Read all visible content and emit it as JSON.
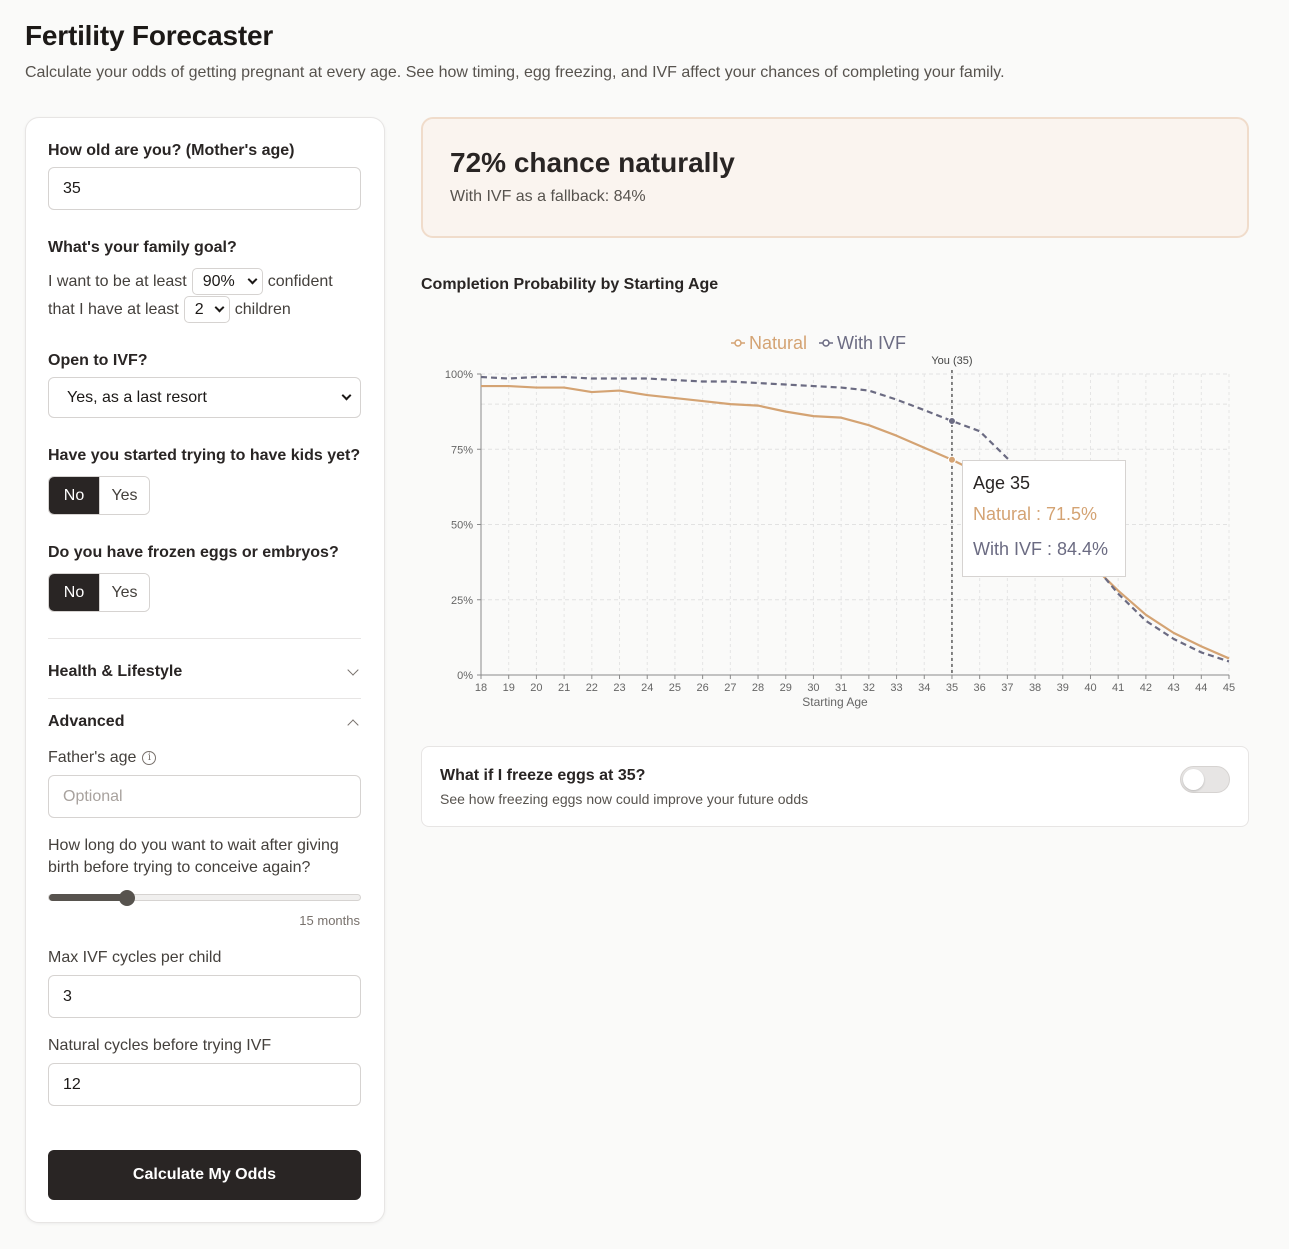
{
  "header": {
    "title": "Fertility Forecaster",
    "subtitle": "Calculate your odds of getting pregnant at every age. See how timing, egg freezing, and IVF affect your chances of completing your family."
  },
  "form": {
    "age": {
      "label": "How old are you? (Mother's age)",
      "value": "35"
    },
    "goal": {
      "label": "What's your family goal?",
      "line1_prefix": "I want to be at least",
      "confidence": "90%",
      "line1_suffix": "confident",
      "line2_prefix": "that I have at least",
      "children": "2",
      "line2_suffix": "children"
    },
    "ivf": {
      "label": "Open to IVF?",
      "value": "Yes, as a last resort"
    },
    "started": {
      "label": "Have you started trying to have kids yet?",
      "options": [
        "No",
        "Yes"
      ],
      "selected": "No"
    },
    "frozen": {
      "label": "Do you have frozen eggs or embryos?",
      "options": [
        "No",
        "Yes"
      ],
      "selected": "No"
    },
    "health_section": {
      "label": "Health & Lifestyle",
      "expanded": false
    },
    "advanced_section": {
      "label": "Advanced",
      "expanded": true
    },
    "father_age": {
      "label": "Father's age",
      "placeholder": "Optional",
      "info_icon": "info-icon"
    },
    "wait": {
      "label_line1": "How long do you want to wait after giving",
      "label_line2": "birth before trying to conceive again?",
      "value_label": "15 months",
      "value": 15,
      "min": 0,
      "max": 60
    },
    "max_ivf": {
      "label": "Max IVF cycles per child",
      "value": "3"
    },
    "natural_cycles": {
      "label": "Natural cycles before trying IVF",
      "value": "12"
    },
    "submit_label": "Calculate My Odds"
  },
  "result": {
    "headline": "72% chance naturally",
    "subline": "With IVF as a fallback: 84%"
  },
  "chart_title": "Completion Probability by Starting Age",
  "chart_data": {
    "type": "line",
    "title": "Completion Probability by Starting Age",
    "xlabel": "Starting Age",
    "ylabel": "",
    "xlim": [
      18,
      45
    ],
    "ylim": [
      0,
      100
    ],
    "yticks": [
      "0%",
      "25%",
      "50%",
      "75%",
      "100%"
    ],
    "legend": "top",
    "grid": true,
    "marker_label": "You (35)",
    "marker_x": 35,
    "x": [
      18,
      19,
      20,
      21,
      22,
      23,
      24,
      25,
      26,
      27,
      28,
      29,
      30,
      31,
      32,
      33,
      34,
      35,
      36,
      37,
      38,
      39,
      40,
      41,
      42,
      43,
      44,
      45
    ],
    "series": [
      {
        "name": "Natural",
        "color": "#d4a373",
        "dash": false,
        "values": [
          96,
          96,
          95.5,
          95.5,
          94,
          94.5,
          93,
          92,
          91,
          90,
          89.5,
          87.5,
          86,
          85.5,
          83,
          79.5,
          75.5,
          71.5,
          67,
          62,
          56,
          48,
          37,
          28,
          20,
          14,
          9.5,
          5.5
        ]
      },
      {
        "name": "With IVF",
        "color": "#6b6b82",
        "dash": true,
        "values": [
          99,
          98.5,
          99,
          99,
          98.5,
          98.5,
          98.5,
          98,
          97.5,
          97.5,
          97,
          96.5,
          96,
          95.5,
          94.5,
          91.5,
          88,
          84.4,
          81,
          72,
          62,
          50,
          38,
          27,
          18,
          12,
          7.5,
          4.5
        ]
      }
    ]
  },
  "tooltip": {
    "title": "Age 35",
    "natural": "Natural : 71.5%",
    "ivf": "With IVF : 84.4%"
  },
  "freeze": {
    "title": "What if I freeze eggs at 35?",
    "subtitle": "See how freezing eggs now could improve your future odds",
    "enabled": false
  }
}
